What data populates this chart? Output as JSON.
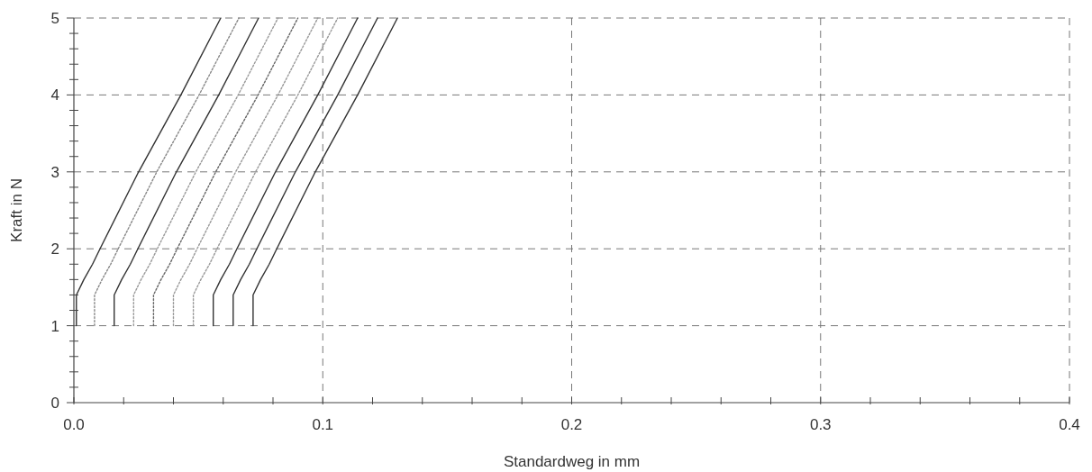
{
  "chart_data": {
    "type": "line",
    "xlabel": "Standardweg in mm",
    "ylabel": "Kraft in N",
    "xlim": [
      0,
      0.4
    ],
    "ylim": [
      0,
      5
    ],
    "grid": true,
    "marker": "none",
    "xticks": [
      {
        "value": 0,
        "label": "0.0"
      },
      {
        "value": 0.02,
        "label": null
      },
      {
        "value": 0.04,
        "label": null
      },
      {
        "value": 0.06,
        "label": null
      },
      {
        "value": 0.08,
        "label": null
      },
      {
        "value": 0.1,
        "label": "0.1"
      },
      {
        "value": 0.12,
        "label": null
      },
      {
        "value": 0.14,
        "label": null
      },
      {
        "value": 0.16,
        "label": null
      },
      {
        "value": 0.18,
        "label": null
      },
      {
        "value": 0.2,
        "label": "0.2"
      },
      {
        "value": 0.22,
        "label": null
      },
      {
        "value": 0.24,
        "label": null
      },
      {
        "value": 0.26,
        "label": null
      },
      {
        "value": 0.28,
        "label": null
      },
      {
        "value": 0.3,
        "label": "0.3"
      },
      {
        "value": 0.32,
        "label": null
      },
      {
        "value": 0.34,
        "label": null
      },
      {
        "value": 0.36,
        "label": null
      },
      {
        "value": 0.38,
        "label": null
      },
      {
        "value": 0.4,
        "label": "0.4"
      }
    ],
    "yticks": [
      0,
      {
        "value": 0.2,
        "label": null
      },
      {
        "value": 0.4,
        "label": null
      },
      {
        "value": 0.6,
        "label": null
      },
      {
        "value": 0.8,
        "label": null
      },
      1,
      {
        "value": 1.2,
        "label": null
      },
      {
        "value": 1.4,
        "label": null
      },
      {
        "value": 1.6,
        "label": null
      },
      {
        "value": 1.8,
        "label": null
      },
      2,
      {
        "value": 2.2,
        "label": null
      },
      {
        "value": 2.4,
        "label": null
      },
      {
        "value": 2.6,
        "label": null
      },
      {
        "value": 2.8,
        "label": null
      },
      3,
      {
        "value": 3.2,
        "label": null
      },
      {
        "value": 3.4,
        "label": null
      },
      {
        "value": 3.6,
        "label": null
      },
      {
        "value": 3.8,
        "label": null
      },
      4,
      {
        "value": 4.2,
        "label": null
      },
      {
        "value": 4.4,
        "label": null
      },
      {
        "value": 4.6,
        "label": null
      },
      {
        "value": 4.8,
        "label": null
      },
      5
    ],
    "series": [
      {
        "color": "#333333",
        "line_style": "solid",
        "x": [
          0.001,
          0.001,
          0.004,
          0.0075,
          0.0105,
          0.026,
          0.043,
          0.059
        ],
        "values": [
          1,
          1.4,
          1.6,
          1.8,
          2,
          3,
          4,
          5
        ]
      },
      {
        "color": "#888888",
        "line_style": "dotted",
        "x": [
          0.0083,
          0.0083,
          0.0113,
          0.0148,
          0.0178,
          0.0333,
          0.0503,
          0.0663
        ],
        "values": [
          1,
          1.4,
          1.6,
          1.8,
          2,
          3,
          4,
          5
        ]
      },
      {
        "color": "#333333",
        "line_style": "solid",
        "x": [
          0.0162,
          0.0162,
          0.0192,
          0.0227,
          0.0257,
          0.0412,
          0.0582,
          0.0742
        ],
        "values": [
          1,
          1.4,
          1.6,
          1.8,
          2,
          3,
          4,
          5
        ]
      },
      {
        "color": "#999999",
        "line_style": "dotted",
        "x": [
          0.024,
          0.024,
          0.027,
          0.0305,
          0.0335,
          0.049,
          0.066,
          0.082
        ],
        "values": [
          1,
          1.4,
          1.6,
          1.8,
          2,
          3,
          4,
          5
        ]
      },
      {
        "color": "#666666",
        "line_style": "dotted",
        "x": [
          0.032,
          0.032,
          0.035,
          0.0385,
          0.0415,
          0.057,
          0.074,
          0.09
        ],
        "values": [
          1,
          1.4,
          1.6,
          1.8,
          2,
          3,
          4,
          5
        ]
      },
      {
        "color": "#999999",
        "line_style": "dotted",
        "x": [
          0.04,
          0.04,
          0.043,
          0.0465,
          0.0495,
          0.065,
          0.082,
          0.098
        ],
        "values": [
          1,
          1.4,
          1.6,
          1.8,
          2,
          3,
          4,
          5
        ]
      },
      {
        "color": "#999999",
        "line_style": "dotted",
        "x": [
          0.048,
          0.048,
          0.051,
          0.0545,
          0.0575,
          0.073,
          0.09,
          0.106
        ],
        "values": [
          1,
          1.4,
          1.6,
          1.8,
          2,
          3,
          4,
          5
        ]
      },
      {
        "color": "#333333",
        "line_style": "solid",
        "x": [
          0.056,
          0.056,
          0.059,
          0.0625,
          0.0655,
          0.081,
          0.098,
          0.114
        ],
        "values": [
          1,
          1.4,
          1.6,
          1.8,
          2,
          3,
          4,
          5
        ]
      },
      {
        "color": "#333333",
        "line_style": "solid",
        "x": [
          0.064,
          0.064,
          0.067,
          0.0705,
          0.0735,
          0.089,
          0.106,
          0.122
        ],
        "values": [
          1,
          1.4,
          1.6,
          1.8,
          2,
          3,
          4,
          5
        ]
      },
      {
        "color": "#333333",
        "line_style": "solid",
        "x": [
          0.072,
          0.072,
          0.075,
          0.0785,
          0.0815,
          0.097,
          0.114,
          0.13
        ],
        "values": [
          1,
          1.4,
          1.6,
          1.8,
          2,
          3,
          4,
          5
        ]
      }
    ]
  }
}
